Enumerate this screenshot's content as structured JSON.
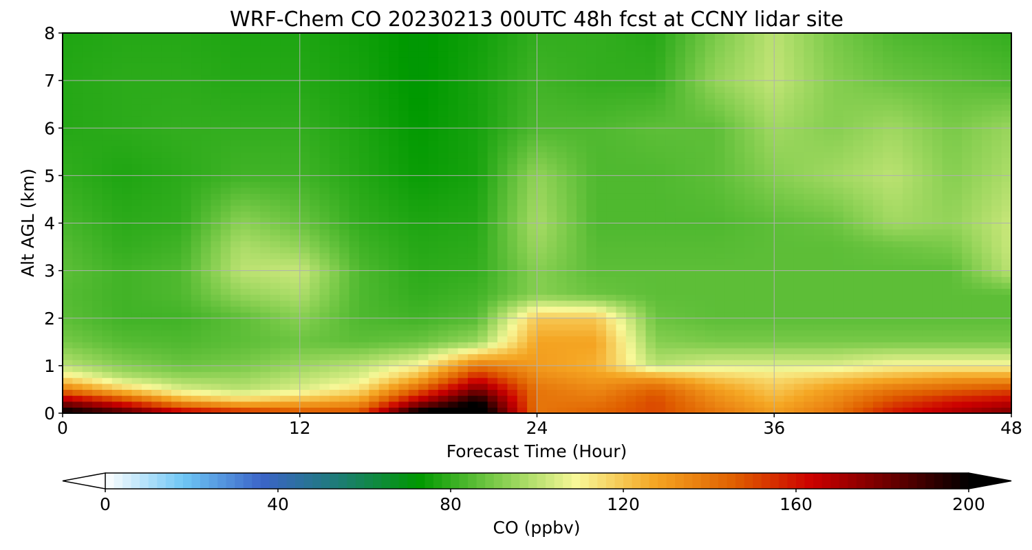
{
  "chart_data": {
    "type": "heatmap",
    "title": "WRF-Chem CO  20230213 00UTC 48h fcst at CCNY lidar site",
    "xlabel": "Forecast Time (Hour)",
    "ylabel": "Alt AGL (km)",
    "xlim": [
      0,
      48
    ],
    "ylim": [
      0,
      8
    ],
    "x_ticks": [
      "0",
      "12",
      "24",
      "36",
      "48"
    ],
    "y_ticks": [
      "0",
      "1",
      "2",
      "3",
      "4",
      "5",
      "6",
      "7",
      "8"
    ],
    "grid": true,
    "x": [
      0,
      3,
      6,
      9,
      12,
      15,
      18,
      21,
      24,
      27,
      30,
      33,
      36,
      39,
      42,
      45,
      48
    ],
    "y": [
      0,
      0.25,
      0.5,
      0.75,
      1,
      1.5,
      2,
      2.5,
      3,
      3.5,
      4,
      5,
      6,
      7,
      8
    ],
    "z": [
      [
        205,
        190,
        170,
        160,
        150,
        150,
        205,
        215,
        140,
        145,
        150,
        140,
        130,
        140,
        160,
        170,
        180
      ],
      [
        175,
        155,
        130,
        120,
        125,
        130,
        170,
        200,
        140,
        140,
        150,
        135,
        125,
        135,
        150,
        160,
        165
      ],
      [
        140,
        120,
        105,
        100,
        105,
        115,
        145,
        180,
        140,
        135,
        145,
        130,
        120,
        130,
        140,
        145,
        150
      ],
      [
        115,
        100,
        95,
        95,
        100,
        105,
        125,
        160,
        135,
        130,
        130,
        120,
        115,
        120,
        125,
        130,
        130
      ],
      [
        100,
        92,
        88,
        90,
        95,
        100,
        110,
        140,
        130,
        125,
        100,
        105,
        105,
        105,
        110,
        110,
        110
      ],
      [
        90,
        85,
        84,
        86,
        88,
        86,
        88,
        95,
        128,
        128,
        92,
        90,
        90,
        90,
        90,
        90,
        90
      ],
      [
        86,
        82,
        82,
        86,
        92,
        84,
        82,
        85,
        120,
        120,
        88,
        86,
        86,
        86,
        86,
        86,
        86
      ],
      [
        85,
        82,
        84,
        94,
        98,
        84,
        80,
        82,
        92,
        88,
        86,
        86,
        86,
        86,
        86,
        86,
        86
      ],
      [
        86,
        82,
        84,
        100,
        102,
        84,
        79,
        80,
        92,
        86,
        86,
        86,
        86,
        86,
        86,
        86,
        100
      ],
      [
        85,
        80,
        82,
        98,
        94,
        82,
        78,
        79,
        95,
        85,
        85,
        85,
        86,
        86,
        88,
        90,
        102
      ],
      [
        83,
        79,
        80,
        93,
        88,
        80,
        77,
        78,
        97,
        84,
        84,
        84,
        86,
        88,
        96,
        94,
        102
      ],
      [
        80,
        77,
        79,
        82,
        82,
        78,
        74,
        76,
        94,
        84,
        84,
        86,
        92,
        96,
        100,
        92,
        98
      ],
      [
        78,
        79,
        80,
        80,
        80,
        77,
        73,
        76,
        84,
        84,
        86,
        86,
        96,
        92,
        96,
        90,
        95
      ],
      [
        78,
        79,
        79,
        78,
        78,
        76,
        72,
        76,
        82,
        80,
        80,
        94,
        101,
        92,
        88,
        86,
        84
      ],
      [
        77,
        78,
        78,
        77,
        77,
        75,
        72,
        75,
        80,
        80,
        78,
        90,
        100,
        90,
        84,
        82,
        80
      ]
    ],
    "colorbar": {
      "label": "CO  (ppbv)",
      "min": 0,
      "max": 200,
      "extend": "both",
      "ticks": [
        "0",
        "40",
        "80",
        "120",
        "160",
        "200"
      ],
      "colors": [
        "#ffffff",
        "#6ec6f5",
        "#3b64c8",
        "#1c7d73",
        "#009900",
        "#7fcc4c",
        "#f8f898",
        "#f5a623",
        "#e06000",
        "#cc0000",
        "#6b0000",
        "#000000"
      ]
    }
  }
}
